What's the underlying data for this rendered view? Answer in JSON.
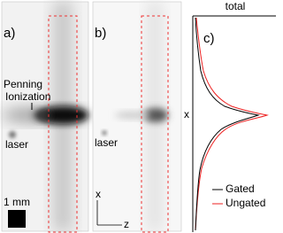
{
  "panels": [
    {
      "label": "a)",
      "annotation_lines": [
        "Penning",
        "Ionization"
      ],
      "laser": "laser",
      "scale": "1 mm"
    },
    {
      "label": "b)",
      "laser": "laser",
      "axis_x": "x",
      "axis_z": "z"
    },
    {
      "label": "c)",
      "title": "total",
      "axis": "x",
      "legend": [
        "Gated",
        "Ungated"
      ]
    }
  ]
}
